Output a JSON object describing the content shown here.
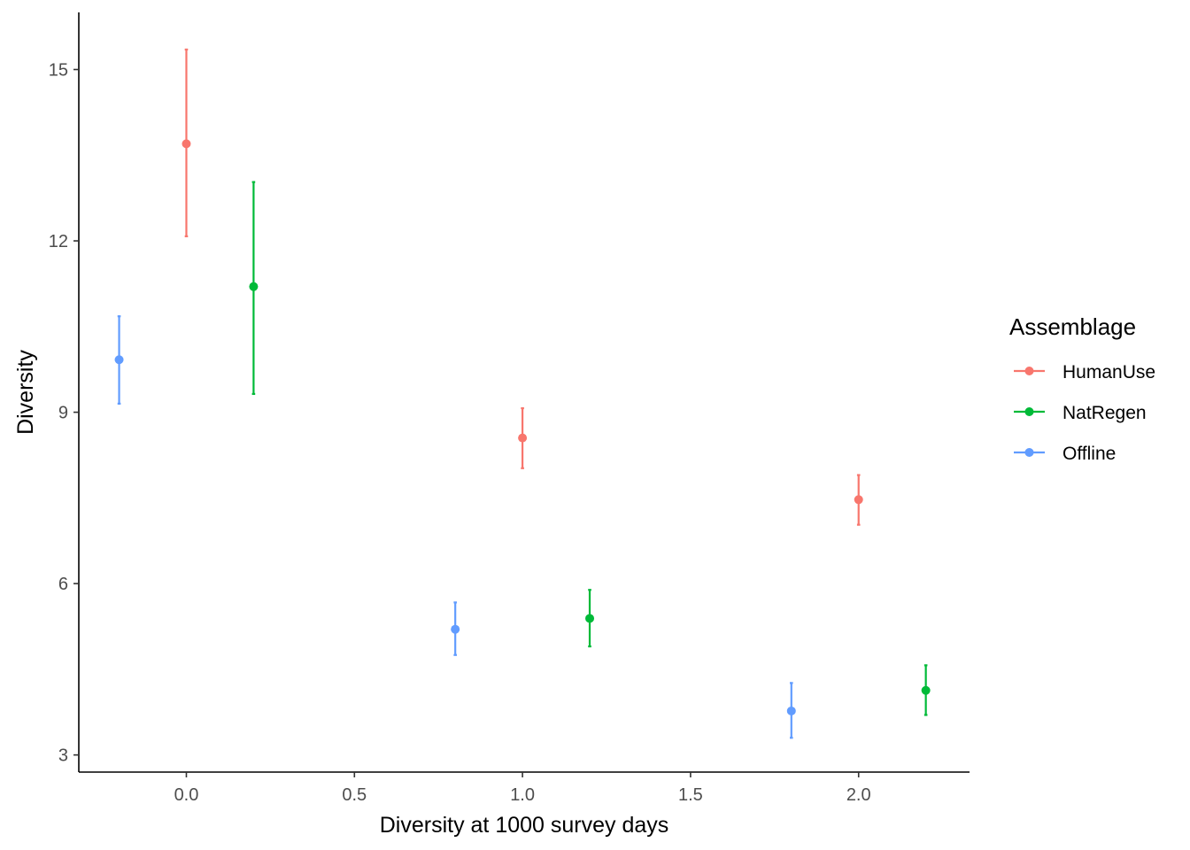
{
  "chart_data": {
    "type": "scatter",
    "title": "",
    "xlabel": "Diversity at 1000 survey days",
    "ylabel": "Diversity",
    "xlim": [
      -0.32,
      2.33
    ],
    "ylim": [
      2.7,
      16.0
    ],
    "x_ticks": [
      0.0,
      0.5,
      1.0,
      1.5,
      2.0
    ],
    "x_tick_labels": [
      "0.0",
      "0.5",
      "1.0",
      "1.5",
      "2.0"
    ],
    "y_ticks": [
      3,
      6,
      9,
      12,
      15
    ],
    "y_tick_labels": [
      "3",
      "6",
      "9",
      "12",
      "15"
    ],
    "grid": false,
    "legend": {
      "title": "Assemblage",
      "placement": "right"
    },
    "series": [
      {
        "name": "HumanUse",
        "color": "#F8766D",
        "points": [
          {
            "x": 0.0,
            "y": 13.7,
            "lower": 12.08,
            "upper": 15.35
          },
          {
            "x": 1.0,
            "y": 8.55,
            "lower": 8.02,
            "upper": 9.07
          },
          {
            "x": 2.0,
            "y": 7.47,
            "lower": 7.03,
            "upper": 7.9
          }
        ]
      },
      {
        "name": "NatRegen",
        "color": "#00BA38",
        "points": [
          {
            "x": 0.2,
            "y": 11.2,
            "lower": 9.32,
            "upper": 13.03
          },
          {
            "x": 1.2,
            "y": 5.39,
            "lower": 4.9,
            "upper": 5.89
          },
          {
            "x": 2.2,
            "y": 4.13,
            "lower": 3.7,
            "upper": 4.57
          }
        ]
      },
      {
        "name": "Offline",
        "color": "#619CFF",
        "points": [
          {
            "x": -0.2,
            "y": 9.92,
            "lower": 9.15,
            "upper": 10.68
          },
          {
            "x": 0.8,
            "y": 5.2,
            "lower": 4.75,
            "upper": 5.67
          },
          {
            "x": 1.8,
            "y": 3.77,
            "lower": 3.3,
            "upper": 4.26
          }
        ]
      }
    ]
  }
}
